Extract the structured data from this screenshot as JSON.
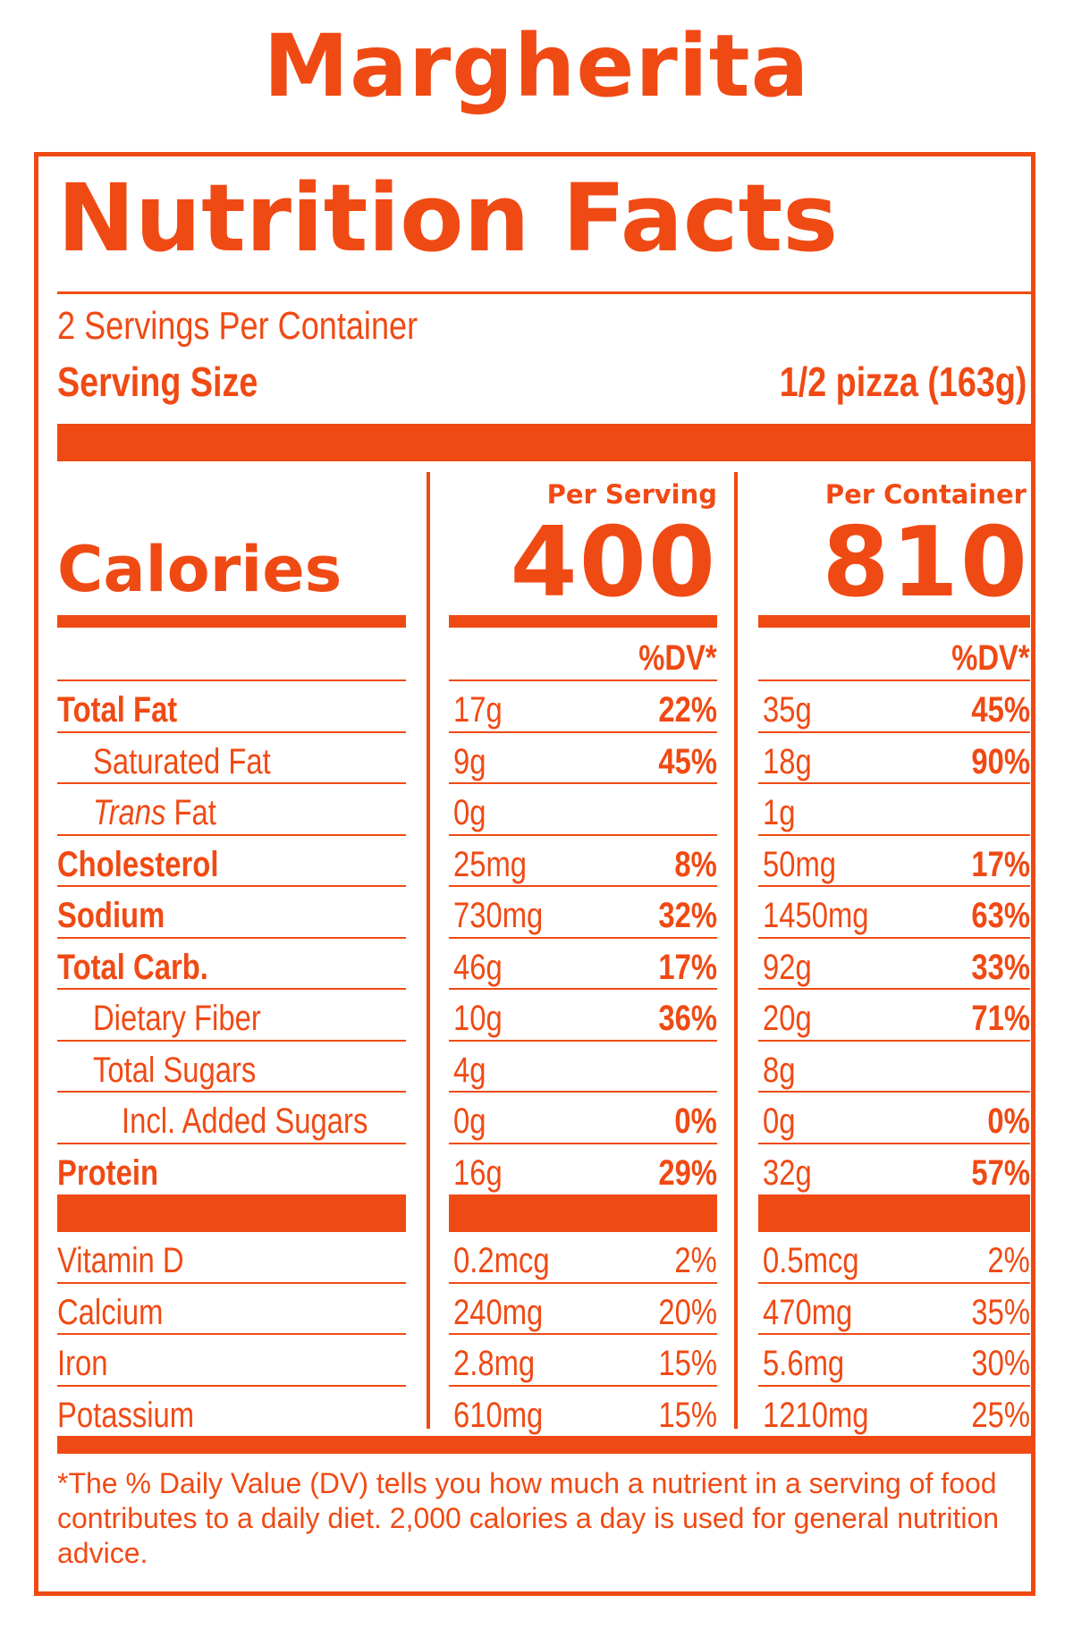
{
  "title": "Margherita",
  "panel_heading": "Nutrition Facts",
  "servings_per_container": "2 Servings Per Container",
  "serving_size_label": "Serving Size",
  "serving_size_value": "1/2 pizza (163g)",
  "columns": {
    "per_serving_label": "Per Serving",
    "per_container_label": "Per Container",
    "dv_label": "%DV*"
  },
  "calories": {
    "label": "Calories",
    "per_serving": "400",
    "per_container": "810"
  },
  "nutrients": [
    {
      "label": "Total Fat",
      "serving_amount": "17g",
      "serving_dv": "22%",
      "container_amount": "35g",
      "container_dv": "45%"
    },
    {
      "label": "Saturated Fat",
      "serving_amount": "9g",
      "serving_dv": "45%",
      "container_amount": "18g",
      "container_dv": "90%"
    },
    {
      "label_italic": "Trans",
      "label": " Fat",
      "serving_amount": "0g",
      "serving_dv": "",
      "container_amount": "1g",
      "container_dv": ""
    },
    {
      "label": "Cholesterol",
      "serving_amount": "25mg",
      "serving_dv": "8%",
      "container_amount": "50mg",
      "container_dv": "17%"
    },
    {
      "label": "Sodium",
      "serving_amount": "730mg",
      "serving_dv": "32%",
      "container_amount": "1450mg",
      "container_dv": "63%"
    },
    {
      "label": "Total Carb.",
      "serving_amount": "46g",
      "serving_dv": "17%",
      "container_amount": "92g",
      "container_dv": "33%"
    },
    {
      "label": "Dietary Fiber",
      "serving_amount": "10g",
      "serving_dv": "36%",
      "container_amount": "20g",
      "container_dv": "71%"
    },
    {
      "label": "Total Sugars",
      "serving_amount": "4g",
      "serving_dv": "",
      "container_amount": "8g",
      "container_dv": ""
    },
    {
      "label": "Incl. Added Sugars",
      "serving_amount": "0g",
      "serving_dv": "0%",
      "container_amount": "0g",
      "container_dv": "0%"
    },
    {
      "label": "Protein",
      "serving_amount": "16g",
      "serving_dv": "29%",
      "container_amount": "32g",
      "container_dv": "57%"
    }
  ],
  "vitamins": [
    {
      "label": "Vitamin D",
      "serving_amount": "0.2mcg",
      "serving_dv": "2%",
      "container_amount": "0.5mcg",
      "container_dv": "2%"
    },
    {
      "label": "Calcium",
      "serving_amount": "240mg",
      "serving_dv": "20%",
      "container_amount": "470mg",
      "container_dv": "35%"
    },
    {
      "label": "Iron",
      "serving_amount": "2.8mg",
      "serving_dv": "15%",
      "container_amount": "5.6mg",
      "container_dv": "30%"
    },
    {
      "label": "Potassium",
      "serving_amount": "610mg",
      "serving_dv": "15%",
      "container_amount": "1210mg",
      "container_dv": "25%"
    }
  ],
  "footnote": "*The % Daily Value (DV) tells you how much a nutrient in a serving of food contributes to a daily diet. 2,000 calories a day is used for general nutrition advice.",
  "colors": {
    "accent": "#f04a14",
    "background": "#ffffff"
  }
}
